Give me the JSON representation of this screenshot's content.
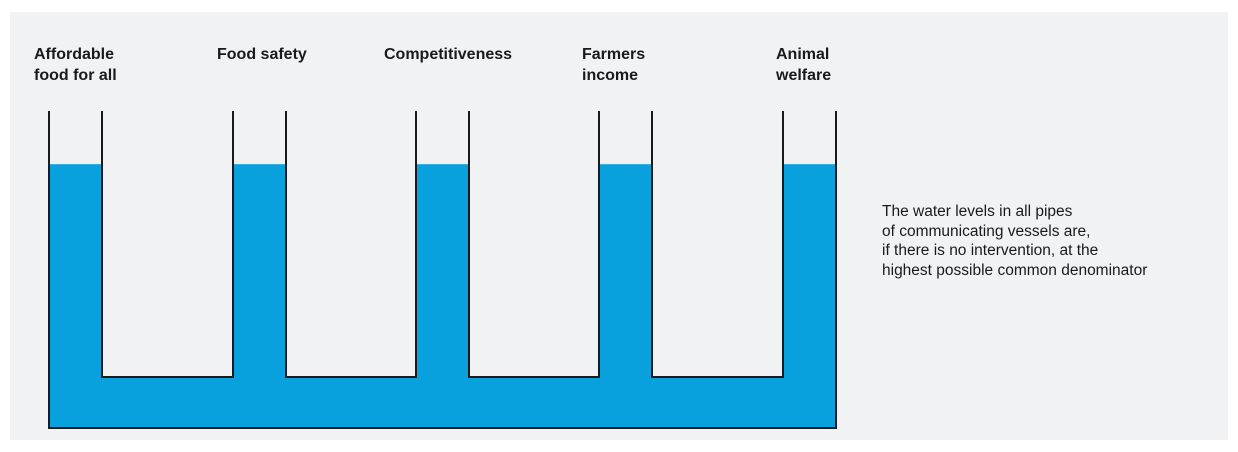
{
  "colors": {
    "background": "#f1f2f4",
    "water": "#09a1dd",
    "outline": "#1a1a1a",
    "text": "#1a1a1a"
  },
  "diagram": {
    "pipes": [
      {
        "label": "Affordable\nfood for all",
        "water_level": 0.8
      },
      {
        "label": "Food safety",
        "water_level": 0.8
      },
      {
        "label": "Competitiveness",
        "water_level": 0.8
      },
      {
        "label": "Farmers\nincome",
        "water_level": 0.8
      },
      {
        "label": "Animal\nwelfare",
        "water_level": 0.8
      }
    ]
  },
  "caption": {
    "lines": [
      "The water levels in all pipes",
      "of communicating vessels are,",
      "if there is no intervention, at the",
      "highest possible common denominator"
    ]
  }
}
